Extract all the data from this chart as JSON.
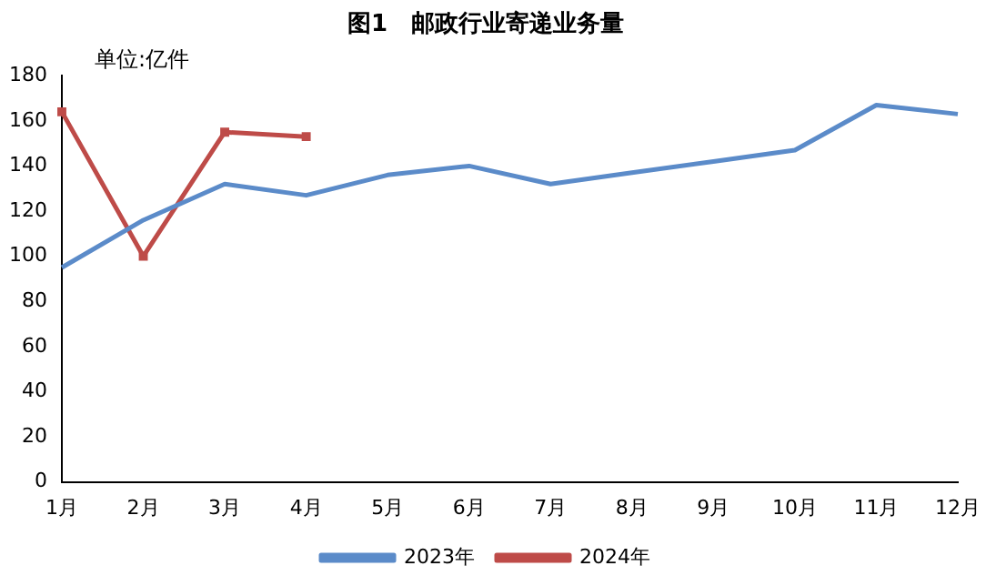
{
  "chart_data": {
    "type": "line",
    "title": "图1　邮政行业寄递业务量",
    "annotations": [
      "单位:亿件"
    ],
    "categories": [
      "1月",
      "2月",
      "3月",
      "4月",
      "5月",
      "6月",
      "7月",
      "8月",
      "9月",
      "10月",
      "11月",
      "12月"
    ],
    "series": [
      {
        "name": "2023年",
        "color": "#5b8bc9",
        "marker": "none",
        "values": [
          95,
          116,
          132,
          127,
          136,
          140,
          132,
          137,
          142,
          147,
          167,
          163
        ]
      },
      {
        "name": "2024年",
        "color": "#be4b48",
        "marker": "square",
        "values": [
          164,
          100,
          155,
          153,
          null,
          null,
          null,
          null,
          null,
          null,
          null,
          null
        ]
      }
    ],
    "ylim": [
      0,
      180
    ],
    "yticks": [
      0,
      20,
      40,
      60,
      80,
      100,
      120,
      140,
      160,
      180
    ],
    "grid": false,
    "legend": "bottom",
    "line_style": "solid"
  }
}
